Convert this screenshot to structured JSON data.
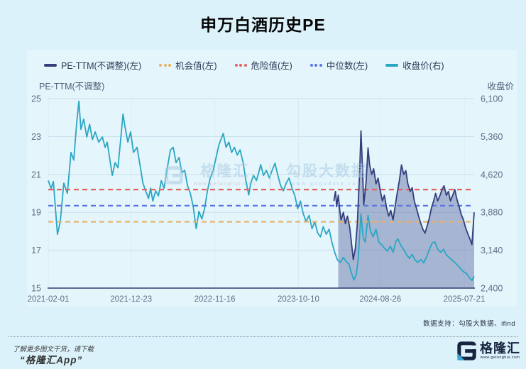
{
  "page": {
    "title": "申万白酒历史PE"
  },
  "legend": {
    "items": [
      {
        "label": "PE-TTM(不调整)(左)",
        "color": "#333e7c",
        "style": "solid"
      },
      {
        "label": "机会值(左)",
        "color": "#e7b168",
        "style": "dotted"
      },
      {
        "label": "危险值(左)",
        "color": "#e2625c",
        "style": "dotted"
      },
      {
        "label": "中位数(左)",
        "color": "#5b76e2",
        "style": "dotted"
      },
      {
        "label": "收盘价(右)",
        "color": "#2aa6c3",
        "style": "solid"
      }
    ]
  },
  "axes": {
    "left_title": "PE-TTM(不调整)",
    "right_title": "收盘价"
  },
  "watermark": {
    "brand": "格隆汇",
    "brand_url": "www.gelonghui.com",
    "partner": "勾股大数据",
    "partner_url": "www.gogudata.com"
  },
  "footer": {
    "data_support": "数据支持：勾股大数据、ifind",
    "promo_line1": "了解更多图文干货，请下载",
    "promo_line2": "“格隆汇App”",
    "logo_text": "格隆汇",
    "logo_url": "www.gelonghui.com"
  },
  "chart_data": {
    "type": "line",
    "title": "申万白酒历史PE",
    "grid": true,
    "legend_position": "top",
    "left_axis": {
      "title": "PE-TTM(不调整)",
      "min": 15,
      "max": 25,
      "ticks": [
        25,
        23,
        21,
        19,
        17,
        15
      ]
    },
    "right_axis": {
      "title": "收盘价",
      "min": 2400,
      "max": 6100,
      "ticks": [
        "6,100",
        "5,360",
        "4,620",
        "3,880",
        "3,140",
        "2,400"
      ]
    },
    "x_axis": {
      "domain": [
        "2021-02-01",
        "2025-08-29"
      ],
      "tick_labels": [
        "2021-02-01",
        "2021-12-23",
        "2022-11-16",
        "2023-10-10",
        "2024-08-26",
        "2025-07-21"
      ]
    },
    "reference_lines": [
      {
        "name": "危险值(左)",
        "axis": "left",
        "value": 20.2,
        "color": "#e2625c"
      },
      {
        "name": "中位数(左)",
        "axis": "left",
        "value": 19.35,
        "color": "#5b76e2"
      },
      {
        "name": "机会值(左)",
        "axis": "left",
        "value": 18.5,
        "color": "#e7b168"
      }
    ],
    "highlight_area": {
      "under_series": "PE-TTM(不调整)(左)",
      "from": "2024-03-11",
      "color": "rgba(88,104,160,0.45)"
    },
    "series": [
      {
        "name": "PE-TTM(不调整)(左)",
        "axis": "left",
        "color": "#333e7c",
        "points": [
          [
            "2024-02-26",
            19.6
          ],
          [
            "2024-03-03",
            20.1
          ],
          [
            "2024-03-08",
            19.3
          ],
          [
            "2024-03-14",
            19.9
          ],
          [
            "2024-03-20",
            19.1
          ],
          [
            "2024-03-25",
            18.6
          ],
          [
            "2024-04-03",
            19.0
          ],
          [
            "2024-04-11",
            18.4
          ],
          [
            "2024-04-19",
            18.8
          ],
          [
            "2024-04-28",
            18.2
          ],
          [
            "2024-05-03",
            17.6
          ],
          [
            "2024-05-12",
            16.5
          ],
          [
            "2024-05-20",
            17.1
          ],
          [
            "2024-05-28",
            18.4
          ],
          [
            "2024-06-06",
            21.2
          ],
          [
            "2024-06-11",
            23.3
          ],
          [
            "2024-06-17",
            21.4
          ],
          [
            "2024-06-22",
            19.4
          ],
          [
            "2024-07-01",
            20.6
          ],
          [
            "2024-07-09",
            22.4
          ],
          [
            "2024-07-15",
            21.5
          ],
          [
            "2024-07-23",
            21.0
          ],
          [
            "2024-07-31",
            21.3
          ],
          [
            "2024-08-09",
            20.5
          ],
          [
            "2024-08-17",
            20.8
          ],
          [
            "2024-08-25",
            20.2
          ],
          [
            "2024-09-03",
            19.6
          ],
          [
            "2024-09-11",
            19.9
          ],
          [
            "2024-09-20",
            19.2
          ],
          [
            "2024-09-28",
            18.8
          ],
          [
            "2024-10-06",
            19.1
          ],
          [
            "2024-10-15",
            18.6
          ],
          [
            "2024-10-23",
            19.3
          ],
          [
            "2024-10-31",
            20.0
          ],
          [
            "2024-11-09",
            20.7
          ],
          [
            "2024-11-17",
            21.5
          ],
          [
            "2024-11-26",
            21.0
          ],
          [
            "2024-12-04",
            21.2
          ],
          [
            "2024-12-12",
            20.5
          ],
          [
            "2024-12-21",
            20.1
          ],
          [
            "2024-12-29",
            20.3
          ],
          [
            "2025-01-06",
            19.6
          ],
          [
            "2025-01-15",
            19.2
          ],
          [
            "2025-01-23",
            18.8
          ],
          [
            "2025-02-01",
            18.4
          ],
          [
            "2025-02-09",
            18.1
          ],
          [
            "2025-02-17",
            17.9
          ],
          [
            "2025-02-26",
            18.3
          ],
          [
            "2025-03-06",
            18.7
          ],
          [
            "2025-03-14",
            19.2
          ],
          [
            "2025-03-23",
            19.6
          ],
          [
            "2025-03-31",
            20.0
          ],
          [
            "2025-04-08",
            19.6
          ],
          [
            "2025-04-17",
            19.9
          ],
          [
            "2025-04-25",
            20.2
          ],
          [
            "2025-05-03",
            20.4
          ],
          [
            "2025-05-12",
            19.9
          ],
          [
            "2025-05-20",
            20.1
          ],
          [
            "2025-05-28",
            19.6
          ],
          [
            "2025-06-06",
            19.9
          ],
          [
            "2025-06-14",
            20.2
          ],
          [
            "2025-06-22",
            19.7
          ],
          [
            "2025-07-01",
            19.3
          ],
          [
            "2025-07-09",
            18.9
          ],
          [
            "2025-07-18",
            18.6
          ],
          [
            "2025-07-26",
            18.2
          ],
          [
            "2025-08-03",
            17.9
          ],
          [
            "2025-08-12",
            17.6
          ],
          [
            "2025-08-20",
            17.3
          ],
          [
            "2025-08-29",
            19.0
          ]
        ]
      },
      {
        "name": "收盘价(右)",
        "axis": "right",
        "color": "#2aa6c3",
        "points": [
          [
            "2021-02-01",
            4500
          ],
          [
            "2021-02-12",
            4350
          ],
          [
            "2021-02-21",
            4480
          ],
          [
            "2021-03-09",
            3450
          ],
          [
            "2021-03-20",
            3700
          ],
          [
            "2021-04-03",
            4450
          ],
          [
            "2021-04-17",
            4250
          ],
          [
            "2021-05-01",
            5050
          ],
          [
            "2021-05-12",
            4900
          ],
          [
            "2021-05-23",
            5600
          ],
          [
            "2021-06-01",
            6050
          ],
          [
            "2021-06-09",
            5500
          ],
          [
            "2021-06-20",
            5700
          ],
          [
            "2021-07-02",
            5350
          ],
          [
            "2021-07-13",
            5600
          ],
          [
            "2021-07-24",
            5300
          ],
          [
            "2021-08-04",
            5450
          ],
          [
            "2021-08-18",
            5250
          ],
          [
            "2021-09-01",
            5350
          ],
          [
            "2021-09-12",
            5150
          ],
          [
            "2021-09-20",
            5250
          ],
          [
            "2021-10-01",
            4900
          ],
          [
            "2021-10-10",
            4600
          ],
          [
            "2021-10-21",
            4850
          ],
          [
            "2021-11-01",
            4750
          ],
          [
            "2021-11-12",
            5300
          ],
          [
            "2021-11-21",
            5800
          ],
          [
            "2021-11-29",
            5550
          ],
          [
            "2021-12-10",
            5250
          ],
          [
            "2021-12-21",
            5450
          ],
          [
            "2022-01-01",
            5050
          ],
          [
            "2022-01-15",
            5150
          ],
          [
            "2022-01-27",
            4800
          ],
          [
            "2022-02-07",
            4450
          ],
          [
            "2022-02-18",
            4300
          ],
          [
            "2022-03-01",
            4150
          ],
          [
            "2022-03-09",
            4350
          ],
          [
            "2022-03-18",
            4100
          ],
          [
            "2022-03-29",
            4300
          ],
          [
            "2022-04-09",
            4200
          ],
          [
            "2022-04-20",
            4500
          ],
          [
            "2022-05-01",
            4350
          ],
          [
            "2022-05-12",
            4700
          ],
          [
            "2022-05-26",
            5100
          ],
          [
            "2022-06-06",
            5150
          ],
          [
            "2022-06-17",
            4850
          ],
          [
            "2022-06-29",
            4950
          ],
          [
            "2022-07-10",
            4650
          ],
          [
            "2022-07-21",
            4700
          ],
          [
            "2022-08-01",
            4400
          ],
          [
            "2022-08-12",
            4250
          ],
          [
            "2022-08-23",
            4000
          ],
          [
            "2022-09-04",
            3560
          ],
          [
            "2022-09-15",
            3900
          ],
          [
            "2022-09-26",
            3750
          ],
          [
            "2022-10-07",
            3950
          ],
          [
            "2022-10-18",
            4300
          ],
          [
            "2022-10-29",
            4550
          ],
          [
            "2022-11-10",
            4700
          ],
          [
            "2022-11-21",
            4950
          ],
          [
            "2022-12-02",
            5200
          ],
          [
            "2022-12-10",
            5300
          ],
          [
            "2022-12-19",
            5420
          ],
          [
            "2022-12-30",
            5150
          ],
          [
            "2023-01-10",
            5250
          ],
          [
            "2023-01-21",
            5050
          ],
          [
            "2023-02-01",
            5150
          ],
          [
            "2023-02-12",
            5000
          ],
          [
            "2023-02-23",
            5100
          ],
          [
            "2023-03-07",
            4850
          ],
          [
            "2023-03-18",
            4500
          ],
          [
            "2023-03-29",
            4220
          ],
          [
            "2023-04-06",
            4450
          ],
          [
            "2023-04-17",
            4600
          ],
          [
            "2023-04-28",
            4500
          ],
          [
            "2023-05-07",
            4650
          ],
          [
            "2023-05-15",
            4810
          ],
          [
            "2023-05-26",
            4600
          ],
          [
            "2023-06-06",
            4700
          ],
          [
            "2023-06-18",
            4550
          ],
          [
            "2023-06-29",
            4700
          ],
          [
            "2023-07-10",
            4840
          ],
          [
            "2023-07-21",
            4600
          ],
          [
            "2023-08-01",
            4400
          ],
          [
            "2023-08-12",
            4300
          ],
          [
            "2023-08-23",
            4450
          ],
          [
            "2023-09-03",
            4550
          ],
          [
            "2023-09-15",
            4350
          ],
          [
            "2023-09-26",
            4200
          ],
          [
            "2023-10-07",
            3950
          ],
          [
            "2023-10-18",
            4100
          ],
          [
            "2023-10-29",
            3850
          ],
          [
            "2023-11-09",
            3700
          ],
          [
            "2023-11-21",
            3820
          ],
          [
            "2023-12-02",
            3560
          ],
          [
            "2023-12-13",
            3700
          ],
          [
            "2023-12-24",
            3480
          ],
          [
            "2024-01-04",
            3400
          ],
          [
            "2024-01-15",
            3600
          ],
          [
            "2024-01-27",
            3450
          ],
          [
            "2024-02-07",
            3550
          ],
          [
            "2024-02-18",
            3300
          ],
          [
            "2024-02-29",
            3100
          ],
          [
            "2024-03-11",
            2950
          ],
          [
            "2024-03-22",
            2900
          ],
          [
            "2024-04-03",
            3000
          ],
          [
            "2024-04-14",
            2920
          ],
          [
            "2024-04-25",
            2870
          ],
          [
            "2024-05-03",
            2720
          ],
          [
            "2024-05-14",
            2560
          ],
          [
            "2024-05-23",
            2650
          ],
          [
            "2024-05-31",
            2950
          ],
          [
            "2024-06-11",
            3850
          ],
          [
            "2024-06-20",
            3380
          ],
          [
            "2024-06-28",
            3300
          ],
          [
            "2024-07-09",
            3820
          ],
          [
            "2024-07-18",
            3520
          ],
          [
            "2024-07-29",
            3400
          ],
          [
            "2024-08-09",
            3550
          ],
          [
            "2024-08-20",
            3300
          ],
          [
            "2024-08-31",
            3250
          ],
          [
            "2024-09-11",
            3180
          ],
          [
            "2024-09-23",
            3120
          ],
          [
            "2024-10-04",
            3220
          ],
          [
            "2024-10-15",
            3100
          ],
          [
            "2024-10-26",
            3310
          ],
          [
            "2024-11-03",
            3360
          ],
          [
            "2024-11-14",
            3240
          ],
          [
            "2024-11-26",
            3150
          ],
          [
            "2024-12-07",
            3050
          ],
          [
            "2024-12-18",
            2980
          ],
          [
            "2024-12-29",
            3060
          ],
          [
            "2025-01-09",
            2950
          ],
          [
            "2025-01-20",
            2900
          ],
          [
            "2025-02-01",
            2960
          ],
          [
            "2025-02-12",
            2890
          ],
          [
            "2025-02-23",
            3010
          ],
          [
            "2025-03-06",
            3150
          ],
          [
            "2025-03-17",
            3280
          ],
          [
            "2025-03-28",
            3300
          ],
          [
            "2025-04-08",
            3160
          ],
          [
            "2025-04-20",
            3100
          ],
          [
            "2025-05-01",
            3160
          ],
          [
            "2025-05-12",
            3050
          ],
          [
            "2025-05-23",
            3000
          ],
          [
            "2025-06-03",
            2950
          ],
          [
            "2025-06-14",
            2900
          ],
          [
            "2025-06-26",
            2840
          ],
          [
            "2025-07-07",
            2780
          ],
          [
            "2025-07-18",
            2720
          ],
          [
            "2025-07-29",
            2690
          ],
          [
            "2025-08-09",
            2610
          ],
          [
            "2025-08-20",
            2550
          ],
          [
            "2025-08-29",
            2630
          ]
        ]
      }
    ]
  }
}
